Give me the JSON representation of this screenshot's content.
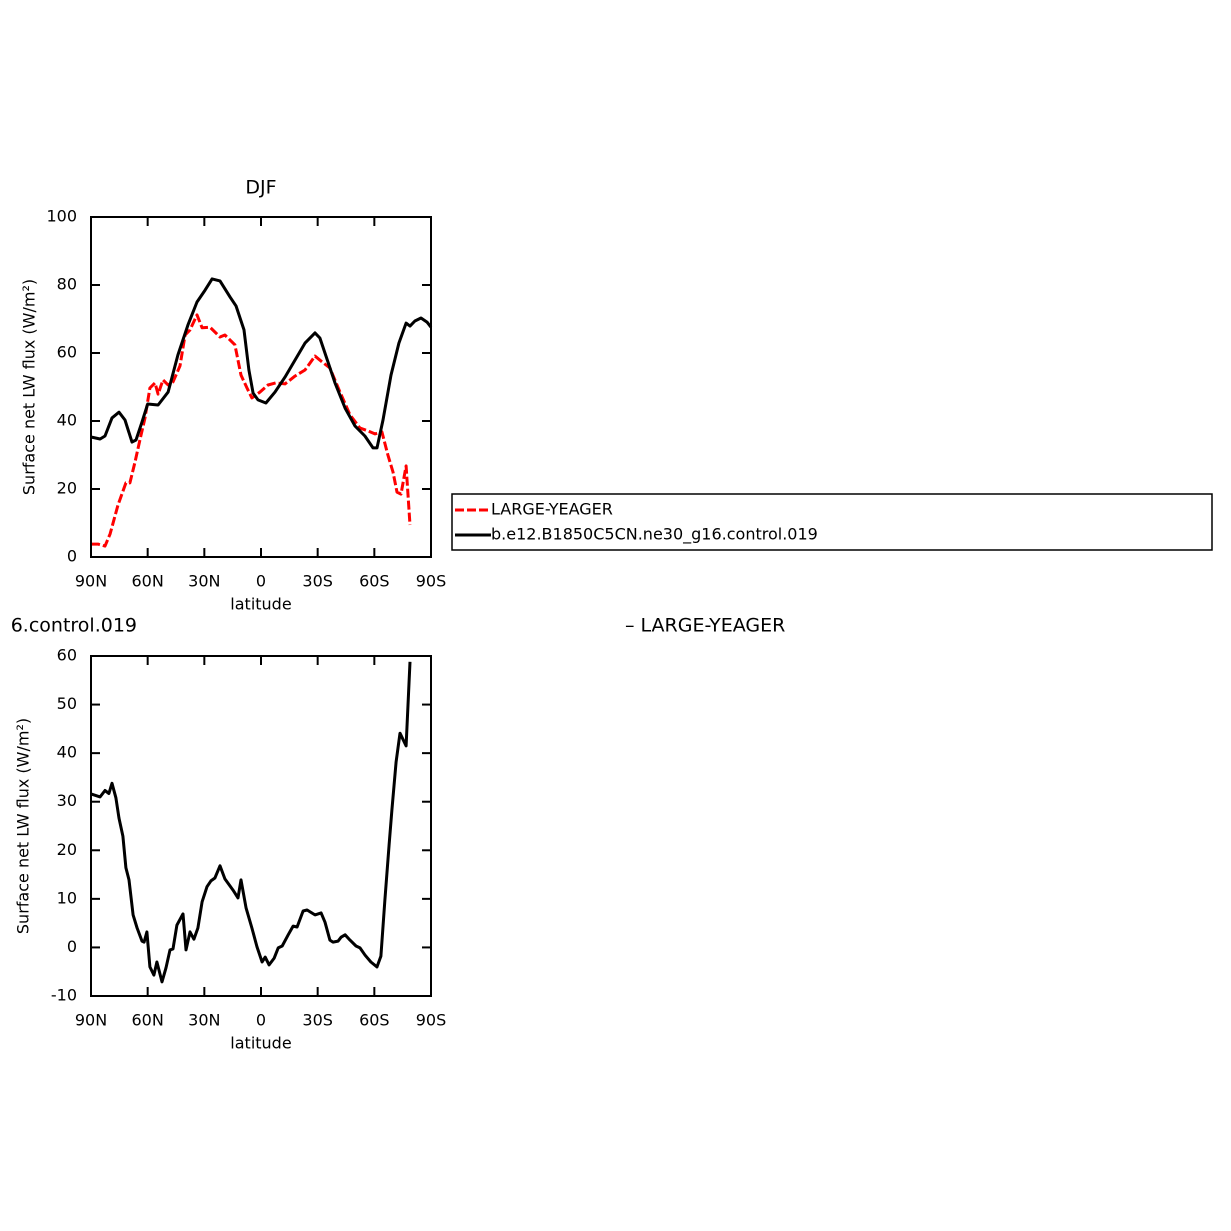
{
  "chart_data": [
    {
      "type": "line",
      "title": "DJF",
      "xlabel": "latitude",
      "ylabel": "Surface net LW flux (W/m²)",
      "xlim": [
        90,
        -90
      ],
      "xticks": [
        {
          "value": 90,
          "label": "90N"
        },
        {
          "value": 60,
          "label": "60N"
        },
        {
          "value": 30,
          "label": "30N"
        },
        0,
        {
          "value": -30,
          "label": "30S"
        },
        {
          "value": -60,
          "label": "60S"
        },
        {
          "value": -90,
          "label": "90S"
        }
      ],
      "ylim": [
        0,
        100
      ],
      "yticks": [
        0,
        20,
        40,
        60,
        80,
        100
      ],
      "legend": "outside-right",
      "series": [
        {
          "name": "LARGE-YEAGER",
          "color": "#ff0000",
          "dash": true,
          "x": [
            90,
            86.3,
            82.6,
            79.9,
            75.7,
            71.5,
            69.4,
            66.7,
            64.1,
            61.4,
            58.8,
            56.1,
            54.5,
            51.9,
            49.2,
            46.6,
            42.9,
            40.2,
            37.6,
            33.9,
            31.2,
            27,
            21.7,
            19.1,
            13.8,
            10.6,
            7.4,
            4.8,
            0.6,
            -3.7,
            -7.9,
            -12.7,
            -18,
            -23.3,
            -28.6,
            -32.3,
            -36.5,
            -41.8,
            -47.1,
            -52.4,
            -56.6,
            -60.3,
            -64,
            -67.2,
            -69.9,
            -72,
            -74.1,
            -76.8,
            -78.9
          ],
          "values": [
            3.8,
            3.8,
            3.2,
            6.8,
            15.3,
            21.8,
            21.8,
            27.9,
            34.4,
            40.9,
            49.7,
            51.2,
            47.9,
            52.1,
            50.6,
            51.5,
            56.2,
            65.3,
            66.8,
            71.2,
            67.4,
            67.6,
            64.7,
            65.3,
            62.4,
            53.5,
            49.7,
            46.8,
            48.5,
            50.6,
            51.2,
            50.9,
            53.2,
            55,
            59.1,
            57.4,
            55.6,
            48.5,
            41.8,
            37.9,
            37.1,
            36.2,
            36.8,
            30,
            25,
            19.1,
            18.5,
            26.8,
            9.4
          ]
        },
        {
          "name": "b.e12.B1850C5CN.ne30_g16.control.019",
          "color": "#000000",
          "dash": false,
          "x": [
            90,
            85.2,
            82.6,
            78.9,
            75.2,
            72,
            68.3,
            66.2,
            63,
            60,
            54.5,
            49.2,
            44,
            38.7,
            33.9,
            29.6,
            25.9,
            21.7,
            16.4,
            13.2,
            9,
            6.4,
            4.2,
            1.6,
            -2.6,
            -7.4,
            -12.7,
            -18,
            -23.3,
            -28.6,
            -31.2,
            -34.4,
            -39.2,
            -44.5,
            -49.8,
            -55,
            -59.3,
            -61.4,
            -64.6,
            -68.8,
            -73,
            -76.8,
            -78.9,
            -81.5,
            -84.7,
            -87.9,
            -90
          ],
          "values": [
            35.3,
            34.7,
            35.6,
            40.9,
            42.6,
            40.3,
            33.8,
            34.4,
            39.7,
            45,
            44.7,
            48.5,
            59.4,
            68.2,
            75,
            78.5,
            81.8,
            81.2,
            76.5,
            73.8,
            66.8,
            55,
            48.2,
            46.2,
            45.3,
            48.5,
            52.9,
            57.9,
            62.9,
            65.9,
            64.4,
            59.1,
            51.2,
            43.8,
            38.5,
            35.6,
            32.1,
            32.1,
            40.3,
            53.5,
            62.9,
            68.8,
            67.9,
            69.4,
            70.3,
            69.1,
            67.6
          ]
        }
      ]
    },
    {
      "type": "line",
      "xlabel": "latitude",
      "ylabel": "Surface net LW flux (W/m²)",
      "annotations": [
        "6.control.019",
        "– LARGE-YEAGER"
      ],
      "xlim": [
        90,
        -90
      ],
      "xticks": [
        {
          "value": 90,
          "label": "90N"
        },
        {
          "value": 60,
          "label": "60N"
        },
        {
          "value": 30,
          "label": "30N"
        },
        0,
        {
          "value": -30,
          "label": "30S"
        },
        {
          "value": -60,
          "label": "60S"
        },
        {
          "value": -90,
          "label": "90S"
        }
      ],
      "ylim": [
        -10,
        60
      ],
      "yticks": [
        -10,
        0,
        10,
        20,
        30,
        40,
        50,
        60
      ],
      "series": [
        {
          "color": "#000000",
          "dash": false,
          "x": [
            90,
            85.2,
            82.6,
            80.5,
            78.9,
            76.8,
            75.2,
            73.1,
            71.5,
            69.9,
            67.7,
            65.6,
            63,
            61.9,
            60.4,
            58.8,
            56.7,
            55.1,
            52.4,
            50.3,
            48.2,
            46.6,
            44.5,
            41.3,
            39.7,
            37.6,
            35.5,
            33.4,
            31.2,
            28.6,
            26.5,
            24.4,
            21.7,
            19.1,
            14.8,
            12.2,
            10.6,
            7.9,
            4.8,
            2.1,
            -0.6,
            -2.2,
            -4.3,
            -7,
            -9.1,
            -11.2,
            -14.4,
            -17,
            -19.1,
            -22.3,
            -24.4,
            -28.6,
            -31.8,
            -33.9,
            -36.5,
            -38.1,
            -40.8,
            -42.4,
            -44.5,
            -47.1,
            -50.3,
            -52.4,
            -55.1,
            -58.2,
            -61.4,
            -63.5,
            -65.6,
            -67.8,
            -69.3,
            -71.5,
            -73.6,
            -76.8,
            -78.9
          ],
          "values": [
            31.6,
            31,
            32.3,
            31.7,
            33.8,
            30.8,
            26.6,
            22.9,
            16.4,
            13.9,
            6.7,
            4,
            1.3,
            1.1,
            3.2,
            -4,
            -5.7,
            -3,
            -7.1,
            -4.2,
            -0.5,
            -0.3,
            4.6,
            6.9,
            -0.5,
            3.2,
            1.7,
            4,
            9.4,
            12.5,
            13.7,
            14.3,
            16.8,
            14.1,
            11.8,
            10.2,
            13.9,
            8.1,
            4,
            0.1,
            -3,
            -2,
            -3.6,
            -2.2,
            -0.1,
            0.3,
            2.6,
            4.4,
            4.2,
            7.5,
            7.7,
            6.7,
            7.1,
            5.2,
            1.5,
            1.1,
            1.3,
            2.1,
            2.6,
            1.5,
            0.3,
            -0.1,
            -1.6,
            -3,
            -4,
            -1.8,
            9.8,
            21.1,
            28.3,
            38.2,
            44.1,
            41.5,
            58.8
          ]
        }
      ]
    }
  ]
}
